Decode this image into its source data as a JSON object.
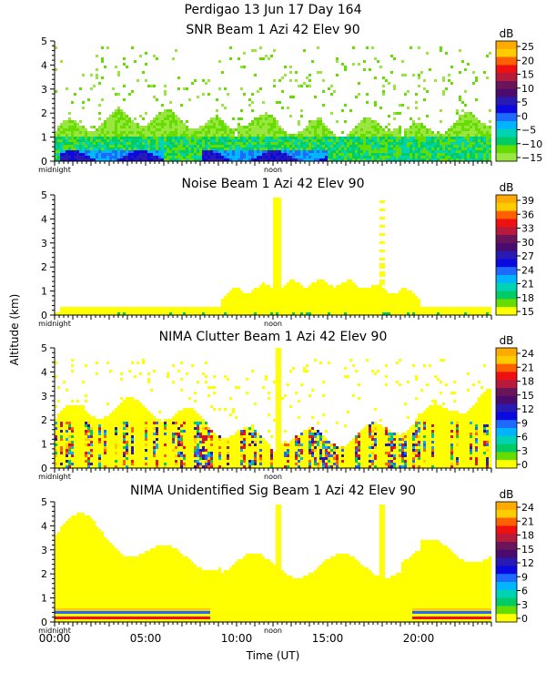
{
  "figure": {
    "title": "Perdigao  13 Jun 17 Day 164",
    "ylabel": "Altitude (km)",
    "xlabel": "Time (UT)",
    "x_ticks": [
      "00:00",
      "05:00",
      "10:00",
      "15:00",
      "20:00"
    ],
    "midnight_label": "midnight",
    "noon_label": "noon"
  },
  "chart_data": [
    {
      "type": "heatmap",
      "title": "SNR Beam 1 Azi  42 Elev 90",
      "ylabel": "Altitude (km)",
      "ylim": [
        0,
        5
      ],
      "yticks": [
        "0",
        "1",
        "2",
        "3",
        "4",
        "5"
      ],
      "xlim_hours": [
        0,
        24
      ],
      "colorbar": {
        "unit": "dB",
        "labels": [
          "25",
          "20",
          "15",
          "10",
          "5",
          "0",
          "−5",
          "−10",
          "−15"
        ],
        "colors": [
          "#ffaa00",
          "#ffcc00",
          "#ff6000",
          "#ee1111",
          "#b81a3c",
          "#6a145a",
          "#4b0a6e",
          "#2a1ab4",
          "#0a0ae0",
          "#1e6aff",
          "#00b4ff",
          "#00d2b4",
          "#00cc66",
          "#66dd00",
          "#99e640"
        ]
      },
      "field": "snr"
    },
    {
      "type": "heatmap",
      "title": "Noise Beam 1 Azi  42 Elev 90",
      "ylabel": "Altitude (km)",
      "ylim": [
        0,
        5
      ],
      "yticks": [
        "0",
        "1",
        "2",
        "3",
        "4",
        "5"
      ],
      "xlim_hours": [
        0,
        24
      ],
      "colorbar": {
        "unit": "dB",
        "labels": [
          "39",
          "36",
          "33",
          "30",
          "27",
          "24",
          "21",
          "18",
          "15"
        ],
        "colors": [
          "#ffaa00",
          "#ffcc00",
          "#ff6000",
          "#ee1111",
          "#b81a3c",
          "#6a145a",
          "#4b0a6e",
          "#2a1ab4",
          "#0a0ae0",
          "#1e6aff",
          "#00b4ff",
          "#00d2b4",
          "#00cc66",
          "#66dd00",
          "#ffff00"
        ]
      },
      "field": "noise"
    },
    {
      "type": "heatmap",
      "title": "NIMA Clutter Beam 1 Azi  42 Elev 90",
      "ylabel": "Altitude (km)",
      "ylim": [
        0,
        5
      ],
      "yticks": [
        "0",
        "1",
        "2",
        "3",
        "4",
        "5"
      ],
      "xlim_hours": [
        0,
        24
      ],
      "colorbar": {
        "unit": "dB",
        "labels": [
          "24",
          "21",
          "18",
          "15",
          "12",
          "9",
          "6",
          "3",
          "0"
        ],
        "colors": [
          "#ffaa00",
          "#ffcc00",
          "#ff6000",
          "#ee1111",
          "#b81a3c",
          "#6a145a",
          "#4b0a6e",
          "#2a1ab4",
          "#0a0ae0",
          "#1e6aff",
          "#00b4ff",
          "#00d2b4",
          "#00cc66",
          "#66dd00",
          "#ffff00"
        ]
      },
      "field": "clutter"
    },
    {
      "type": "heatmap",
      "title": "NIMA Unidentified Sig Beam 1 Azi  42 Elev 90",
      "ylabel": "Altitude (km)",
      "ylim": [
        0,
        5
      ],
      "yticks": [
        "0",
        "1",
        "2",
        "3",
        "4",
        "5"
      ],
      "xlim_hours": [
        0,
        24
      ],
      "colorbar": {
        "unit": "dB",
        "labels": [
          "24",
          "21",
          "18",
          "15",
          "12",
          "9",
          "6",
          "3",
          "0"
        ],
        "colors": [
          "#ffaa00",
          "#ffcc00",
          "#ff6000",
          "#ee1111",
          "#b81a3c",
          "#6a145a",
          "#4b0a6e",
          "#2a1ab4",
          "#0a0ae0",
          "#1e6aff",
          "#00b4ff",
          "#00d2b4",
          "#00cc66",
          "#66dd00",
          "#ffff00"
        ]
      },
      "field": "unident"
    }
  ]
}
